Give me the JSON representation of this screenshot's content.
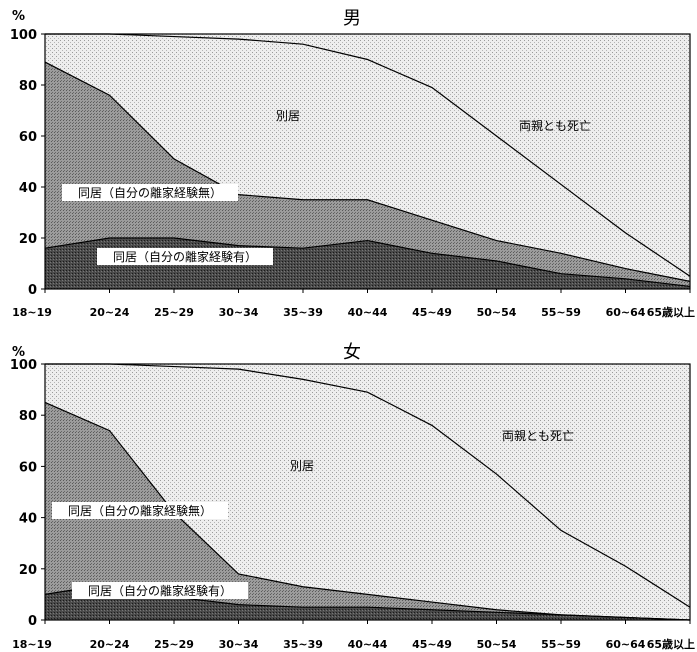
{
  "chart_data": [
    {
      "type": "area",
      "title": "男",
      "yunit": "%",
      "ylim": [
        0,
        100
      ],
      "yticks": [
        "0",
        "20",
        "40",
        "60",
        "80",
        "100"
      ],
      "categories": [
        "18~19",
        "20~24",
        "25~29",
        "30~34",
        "35~39",
        "40~44",
        "45~49",
        "50~54",
        "55~59",
        "60~64",
        "65歳以上"
      ],
      "series": [
        {
          "name": "同居（自分の離家経験有）",
          "values": [
            16,
            20,
            20,
            17,
            16,
            19,
            14,
            11,
            6,
            4,
            1
          ]
        },
        {
          "name": "同居（自分の離家経験無）",
          "values": [
            89,
            76,
            51,
            37,
            35,
            35,
            27,
            19,
            14,
            8,
            3
          ]
        },
        {
          "name": "別居",
          "values": [
            100,
            100,
            99,
            98,
            96,
            90,
            79,
            60,
            41,
            22,
            5
          ]
        },
        {
          "name": "両親とも死亡",
          "values": [
            100,
            100,
            100,
            100,
            100,
            100,
            100,
            100,
            100,
            100,
            100
          ]
        }
      ],
      "area_labels": {
        "dead": "両親とも死亡",
        "separate": "別居",
        "nolh": "同居（自分の離家経験無）",
        "lh": "同居（自分の離家経験有）"
      }
    },
    {
      "type": "area",
      "title": "女",
      "yunit": "%",
      "ylim": [
        0,
        100
      ],
      "yticks": [
        "0",
        "20",
        "40",
        "60",
        "80",
        "100"
      ],
      "categories": [
        "18~19",
        "20~24",
        "25~29",
        "30~34",
        "35~39",
        "40~44",
        "45~49",
        "50~54",
        "55~59",
        "60~64",
        "65歳以上"
      ],
      "series": [
        {
          "name": "同居（自分の離家経験有）",
          "values": [
            10,
            14,
            9,
            6,
            5,
            5,
            4,
            3,
            2,
            1,
            0
          ]
        },
        {
          "name": "同居（自分の離家経験無）",
          "values": [
            85,
            74,
            42,
            18,
            13,
            10,
            7,
            4,
            2,
            1,
            0
          ]
        },
        {
          "name": "別居",
          "values": [
            100,
            100,
            99,
            98,
            94,
            89,
            76,
            57,
            35,
            21,
            5
          ]
        },
        {
          "name": "両親とも死亡",
          "values": [
            100,
            100,
            100,
            100,
            100,
            100,
            100,
            100,
            100,
            100,
            100
          ]
        }
      ],
      "area_labels": {
        "dead": "両親とも死亡",
        "separate": "別居",
        "nolh": "同居（自分の離家経験無）",
        "lh": "同居（自分の離家経験有）"
      }
    }
  ]
}
